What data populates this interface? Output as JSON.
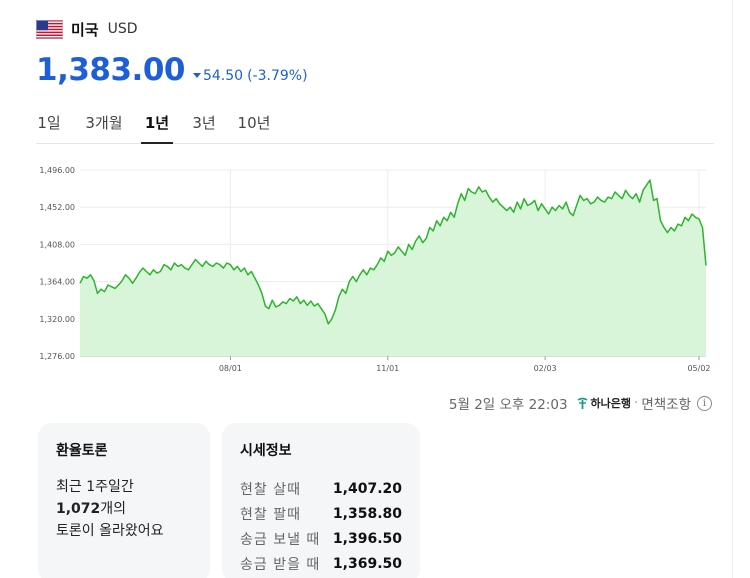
{
  "header": {
    "country": "미국",
    "currency": "USD"
  },
  "rate": {
    "value": "1,383.00",
    "change": "54.50",
    "change_pct": "(-3.79%)",
    "direction": "down",
    "color": "#1d5fd6"
  },
  "tabs": [
    {
      "label": "1일",
      "active": false
    },
    {
      "label": "3개월",
      "active": false
    },
    {
      "label": "1년",
      "active": true
    },
    {
      "label": "3년",
      "active": false
    },
    {
      "label": "10년",
      "active": false
    }
  ],
  "chart_data": {
    "type": "area",
    "title": "",
    "xlabel": "",
    "ylabel": "",
    "y_ticks": [
      "1,496.00",
      "1,452.00",
      "1,408.00",
      "1,364.00",
      "1,320.00",
      "1,276.00"
    ],
    "x_ticks": [
      "08/01",
      "11/01",
      "02/03",
      "05/02"
    ],
    "ylim": [
      1276,
      1496
    ],
    "grid": true,
    "line_color": "#2cb52c",
    "fill_color": "#d9f5d9",
    "values": [
      1362,
      1370,
      1368,
      1372,
      1365,
      1350,
      1355,
      1352,
      1360,
      1358,
      1356,
      1360,
      1365,
      1372,
      1368,
      1362,
      1368,
      1375,
      1380,
      1376,
      1372,
      1378,
      1374,
      1376,
      1384,
      1382,
      1378,
      1386,
      1382,
      1384,
      1380,
      1378,
      1384,
      1390,
      1386,
      1382,
      1388,
      1384,
      1382,
      1386,
      1384,
      1380,
      1386,
      1384,
      1378,
      1382,
      1376,
      1380,
      1372,
      1376,
      1368,
      1360,
      1350,
      1335,
      1332,
      1342,
      1334,
      1336,
      1340,
      1338,
      1344,
      1341,
      1346,
      1338,
      1342,
      1336,
      1341,
      1335,
      1338,
      1332,
      1326,
      1314,
      1320,
      1330,
      1346,
      1355,
      1350,
      1364,
      1370,
      1364,
      1372,
      1378,
      1372,
      1380,
      1378,
      1384,
      1392,
      1388,
      1400,
      1395,
      1398,
      1405,
      1400,
      1395,
      1408,
      1402,
      1412,
      1418,
      1410,
      1415,
      1428,
      1424,
      1436,
      1430,
      1440,
      1436,
      1446,
      1440,
      1456,
      1468,
      1460,
      1474,
      1470,
      1468,
      1476,
      1470,
      1472,
      1464,
      1458,
      1462,
      1456,
      1452,
      1448,
      1452,
      1446,
      1458,
      1450,
      1462,
      1454,
      1456,
      1460,
      1448,
      1456,
      1450,
      1444,
      1452,
      1448,
      1454,
      1450,
      1458,
      1446,
      1442,
      1454,
      1466,
      1460,
      1462,
      1456,
      1458,
      1464,
      1460,
      1458,
      1464,
      1462,
      1470,
      1466,
      1462,
      1472,
      1466,
      1462,
      1468,
      1458,
      1472,
      1478,
      1484,
      1460,
      1462,
      1436,
      1428,
      1422,
      1428,
      1424,
      1432,
      1430,
      1440,
      1436,
      1444,
      1440,
      1438,
      1428,
      1383
    ],
    "index_of_tick": {
      "08/01": 43,
      "11/01": 88,
      "02/03": 133,
      "05/02": 177
    }
  },
  "timestamp": {
    "date": "5월 2일 오후 22:03",
    "bank": "하나은행",
    "separator": "·",
    "disclaimer": "면책조항",
    "info": "i"
  },
  "discussion": {
    "title": "환율토론",
    "line1": "최근 1주일간",
    "count": "1,072",
    "line2_suffix": "개의",
    "line3": "토론이 올라왔어요"
  },
  "market": {
    "title": "시세정보",
    "rows": [
      {
        "label": "현찰 살때",
        "value": "1,407.20"
      },
      {
        "label": "현찰 팔때",
        "value": "1,358.80"
      },
      {
        "label": "송금 보낼 때",
        "value": "1,396.50"
      },
      {
        "label": "송금 받을 때",
        "value": "1,369.50"
      }
    ]
  }
}
